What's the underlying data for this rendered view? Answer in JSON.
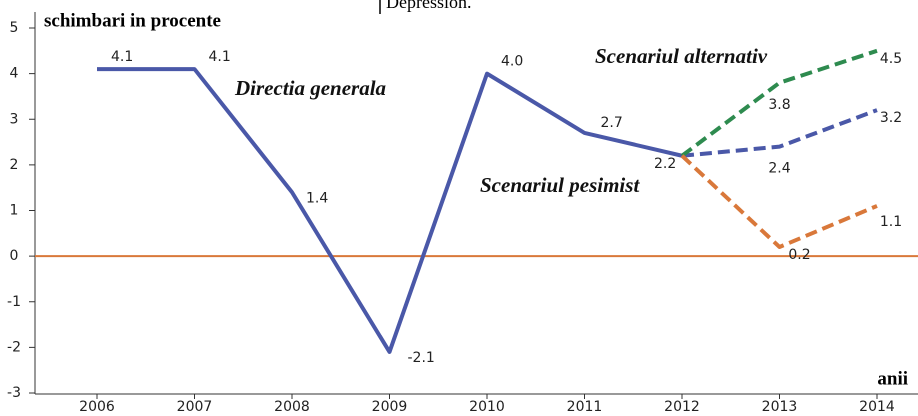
{
  "chart_data": {
    "type": "line",
    "header_note": "Depression.",
    "y_label": "schimbari in procente",
    "x_label": "anii",
    "categories": [
      "2006",
      "2007",
      "2008",
      "2009",
      "2010",
      "2011",
      "2012",
      "2013",
      "2014"
    ],
    "ylim": [
      -3,
      5
    ],
    "yticks": [
      -3,
      -2,
      -1,
      0,
      1,
      2,
      3,
      4,
      5
    ],
    "zero_line_color": "#d9783a",
    "series": [
      {
        "name": "Directia generala",
        "color": "#4a58a8",
        "dashed": false,
        "values": [
          4.1,
          4.1,
          1.4,
          -2.1,
          4.0,
          2.7,
          2.2,
          null,
          null
        ],
        "value_labels": [
          "4.1",
          "4.1",
          "1.4",
          "-2.1",
          "4.0",
          "2.7",
          "2.2",
          null,
          null
        ]
      },
      {
        "color": "#4a58a8",
        "dashed": true,
        "values": [
          null,
          null,
          null,
          null,
          null,
          null,
          2.2,
          2.4,
          3.2
        ],
        "value_labels": [
          null,
          null,
          null,
          null,
          null,
          null,
          null,
          "2.4",
          "3.2"
        ]
      },
      {
        "name": "Scenariul alternativ",
        "color": "#2e8b4f",
        "dashed": true,
        "values": [
          null,
          null,
          null,
          null,
          null,
          null,
          2.2,
          3.8,
          4.5
        ],
        "value_labels": [
          null,
          null,
          null,
          null,
          null,
          null,
          null,
          "3.8",
          "4.5"
        ]
      },
      {
        "name": "Scenariul pesimist",
        "color": "#d9783a",
        "dashed": true,
        "values": [
          null,
          null,
          null,
          null,
          null,
          null,
          2.2,
          0.2,
          1.1
        ],
        "value_labels": [
          null,
          null,
          null,
          null,
          null,
          null,
          null,
          "0.2",
          "1.1"
        ]
      }
    ]
  }
}
